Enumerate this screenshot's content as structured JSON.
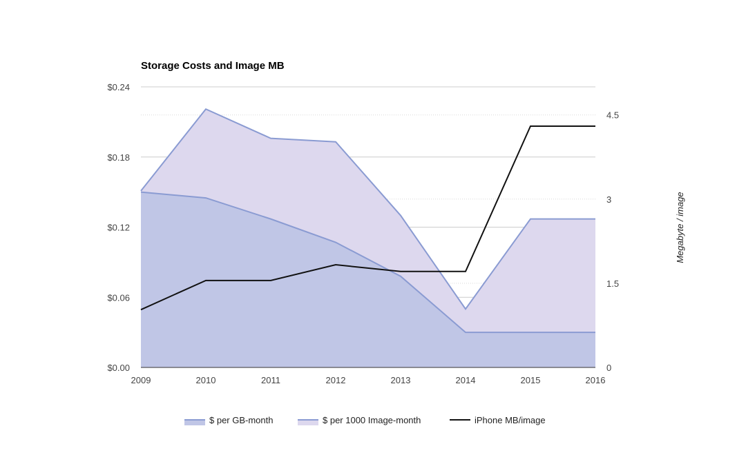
{
  "chart_data": {
    "type": "area",
    "title": "Storage Costs and Image MB",
    "x": [
      "2009",
      "2010",
      "2011",
      "2012",
      "2013",
      "2014",
      "2015",
      "2016"
    ],
    "xlabel": "",
    "y_left": {
      "ylim": [
        0,
        0.24
      ],
      "ticks": [
        "$0.00",
        "$0.06",
        "$0.12",
        "$0.18",
        "$0.24"
      ],
      "tick_values": [
        0,
        0.06,
        0.12,
        0.18,
        0.24
      ]
    },
    "y_right": {
      "label": "Megabyte / image",
      "ylim": [
        0,
        5
      ],
      "ticks": [
        "0",
        "1.5",
        "3",
        "4.5"
      ],
      "tick_values": [
        0,
        1.5,
        3,
        4.5
      ]
    },
    "series": [
      {
        "name": "$ per GB-month",
        "kind": "area",
        "axis": "left",
        "values": [
          0.15,
          0.145,
          0.127,
          0.107,
          0.078,
          0.03,
          0.03,
          0.03
        ],
        "stroke": "#8a9bd2",
        "fill": "#c0c6e6"
      },
      {
        "name": "$ per 1000 Image-month",
        "kind": "area",
        "axis": "left",
        "values": [
          0.151,
          0.221,
          0.196,
          0.193,
          0.13,
          0.05,
          0.127,
          0.127
        ],
        "stroke": "#8a9bd2",
        "fill": "#ddd8ee"
      },
      {
        "name": "iPhone MB/image",
        "kind": "line",
        "axis": "right",
        "values": [
          1.03,
          1.55,
          1.55,
          1.83,
          1.71,
          1.71,
          4.3,
          4.3
        ],
        "stroke": "#111111"
      }
    ],
    "grid": true,
    "legend_position": "bottom"
  }
}
